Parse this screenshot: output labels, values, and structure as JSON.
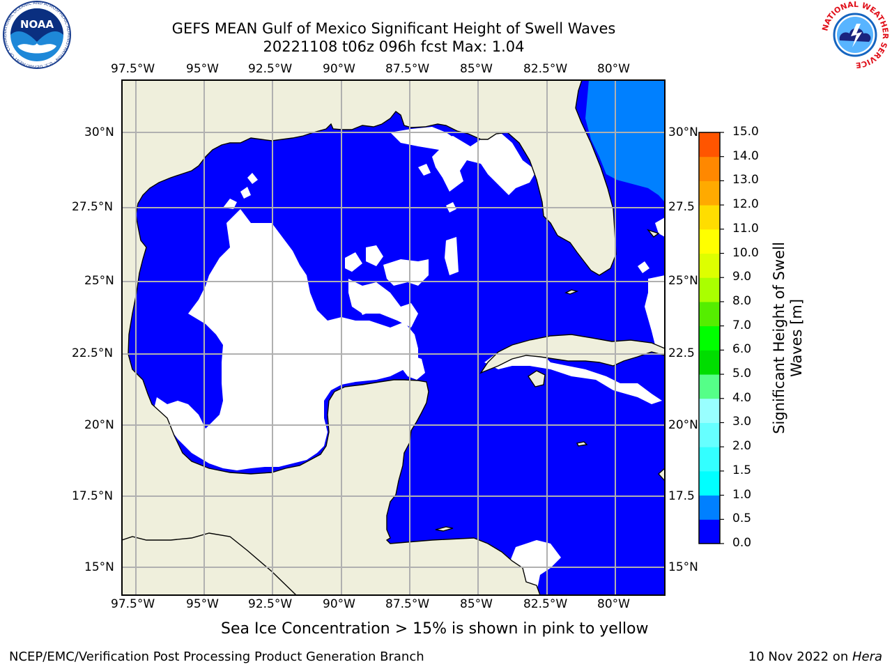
{
  "title_line1": "GEFS MEAN Gulf of Mexico Significant Height of Swell Waves",
  "title_line2": "20221108 t06z 096h fcst   Max: 1.04",
  "lon_labels": [
    "97.5°W",
    "95°W",
    "92.5°W",
    "90°W",
    "87.5°W",
    "85°W",
    "82.5°W",
    "80°W"
  ],
  "lat_labels_left": [
    "30°N",
    "27.5°N",
    "25°N",
    "22.5°N",
    "20°N",
    "17.5°N",
    "15°N"
  ],
  "lat_labels_right": [
    "30°N",
    "27.5",
    "25°N",
    "22.5",
    "20°N",
    "17.5",
    "15°N"
  ],
  "colorbar": {
    "title_line1": "Significant Height of Swell",
    "title_line2": "Waves [m]",
    "tick_labels": [
      "0.0",
      "0.5",
      "1.0",
      "1.5",
      "2.0",
      "3.0",
      "4.0",
      "5.0",
      "6.0",
      "7.0",
      "8.0",
      "9.0",
      "10.0",
      "11.0",
      "12.0",
      "13.0",
      "14.0",
      "15.0"
    ],
    "colors": [
      "#0000ff",
      "#0080ff",
      "#00ffff",
      "#33ffff",
      "#66ffff",
      "#99ffff",
      "#55ff88",
      "#00dd00",
      "#00ff00",
      "#55ee00",
      "#aaff00",
      "#ddff00",
      "#ffff00",
      "#ffdd00",
      "#ffaa00",
      "#ff8800",
      "#ff5500",
      "#ff2200",
      "#ff0000"
    ]
  },
  "colors": {
    "land": "#efefdc",
    "wave_low": "#0000ff",
    "wave_mid": "#0080ff",
    "no_data": "#ffffff",
    "grid": "#b0b0b0"
  },
  "caption": "Sea Ice Concentration > 15% is shown in pink to yellow",
  "footer_left": "NCEP/EMC/Verification Post Processing Product Generation Branch",
  "footer_right_date": "10 Nov 2022 on ",
  "footer_right_host": "Hera",
  "logos": {
    "noaa_text": "NOAA",
    "noaa_ring": "NATIONAL OCEANIC AND ATMOSPHERIC ADMINISTRATION · U.S. DEPARTMENT OF COMMERCE",
    "nws_ring": "NATIONAL WEATHER SERVICE"
  }
}
